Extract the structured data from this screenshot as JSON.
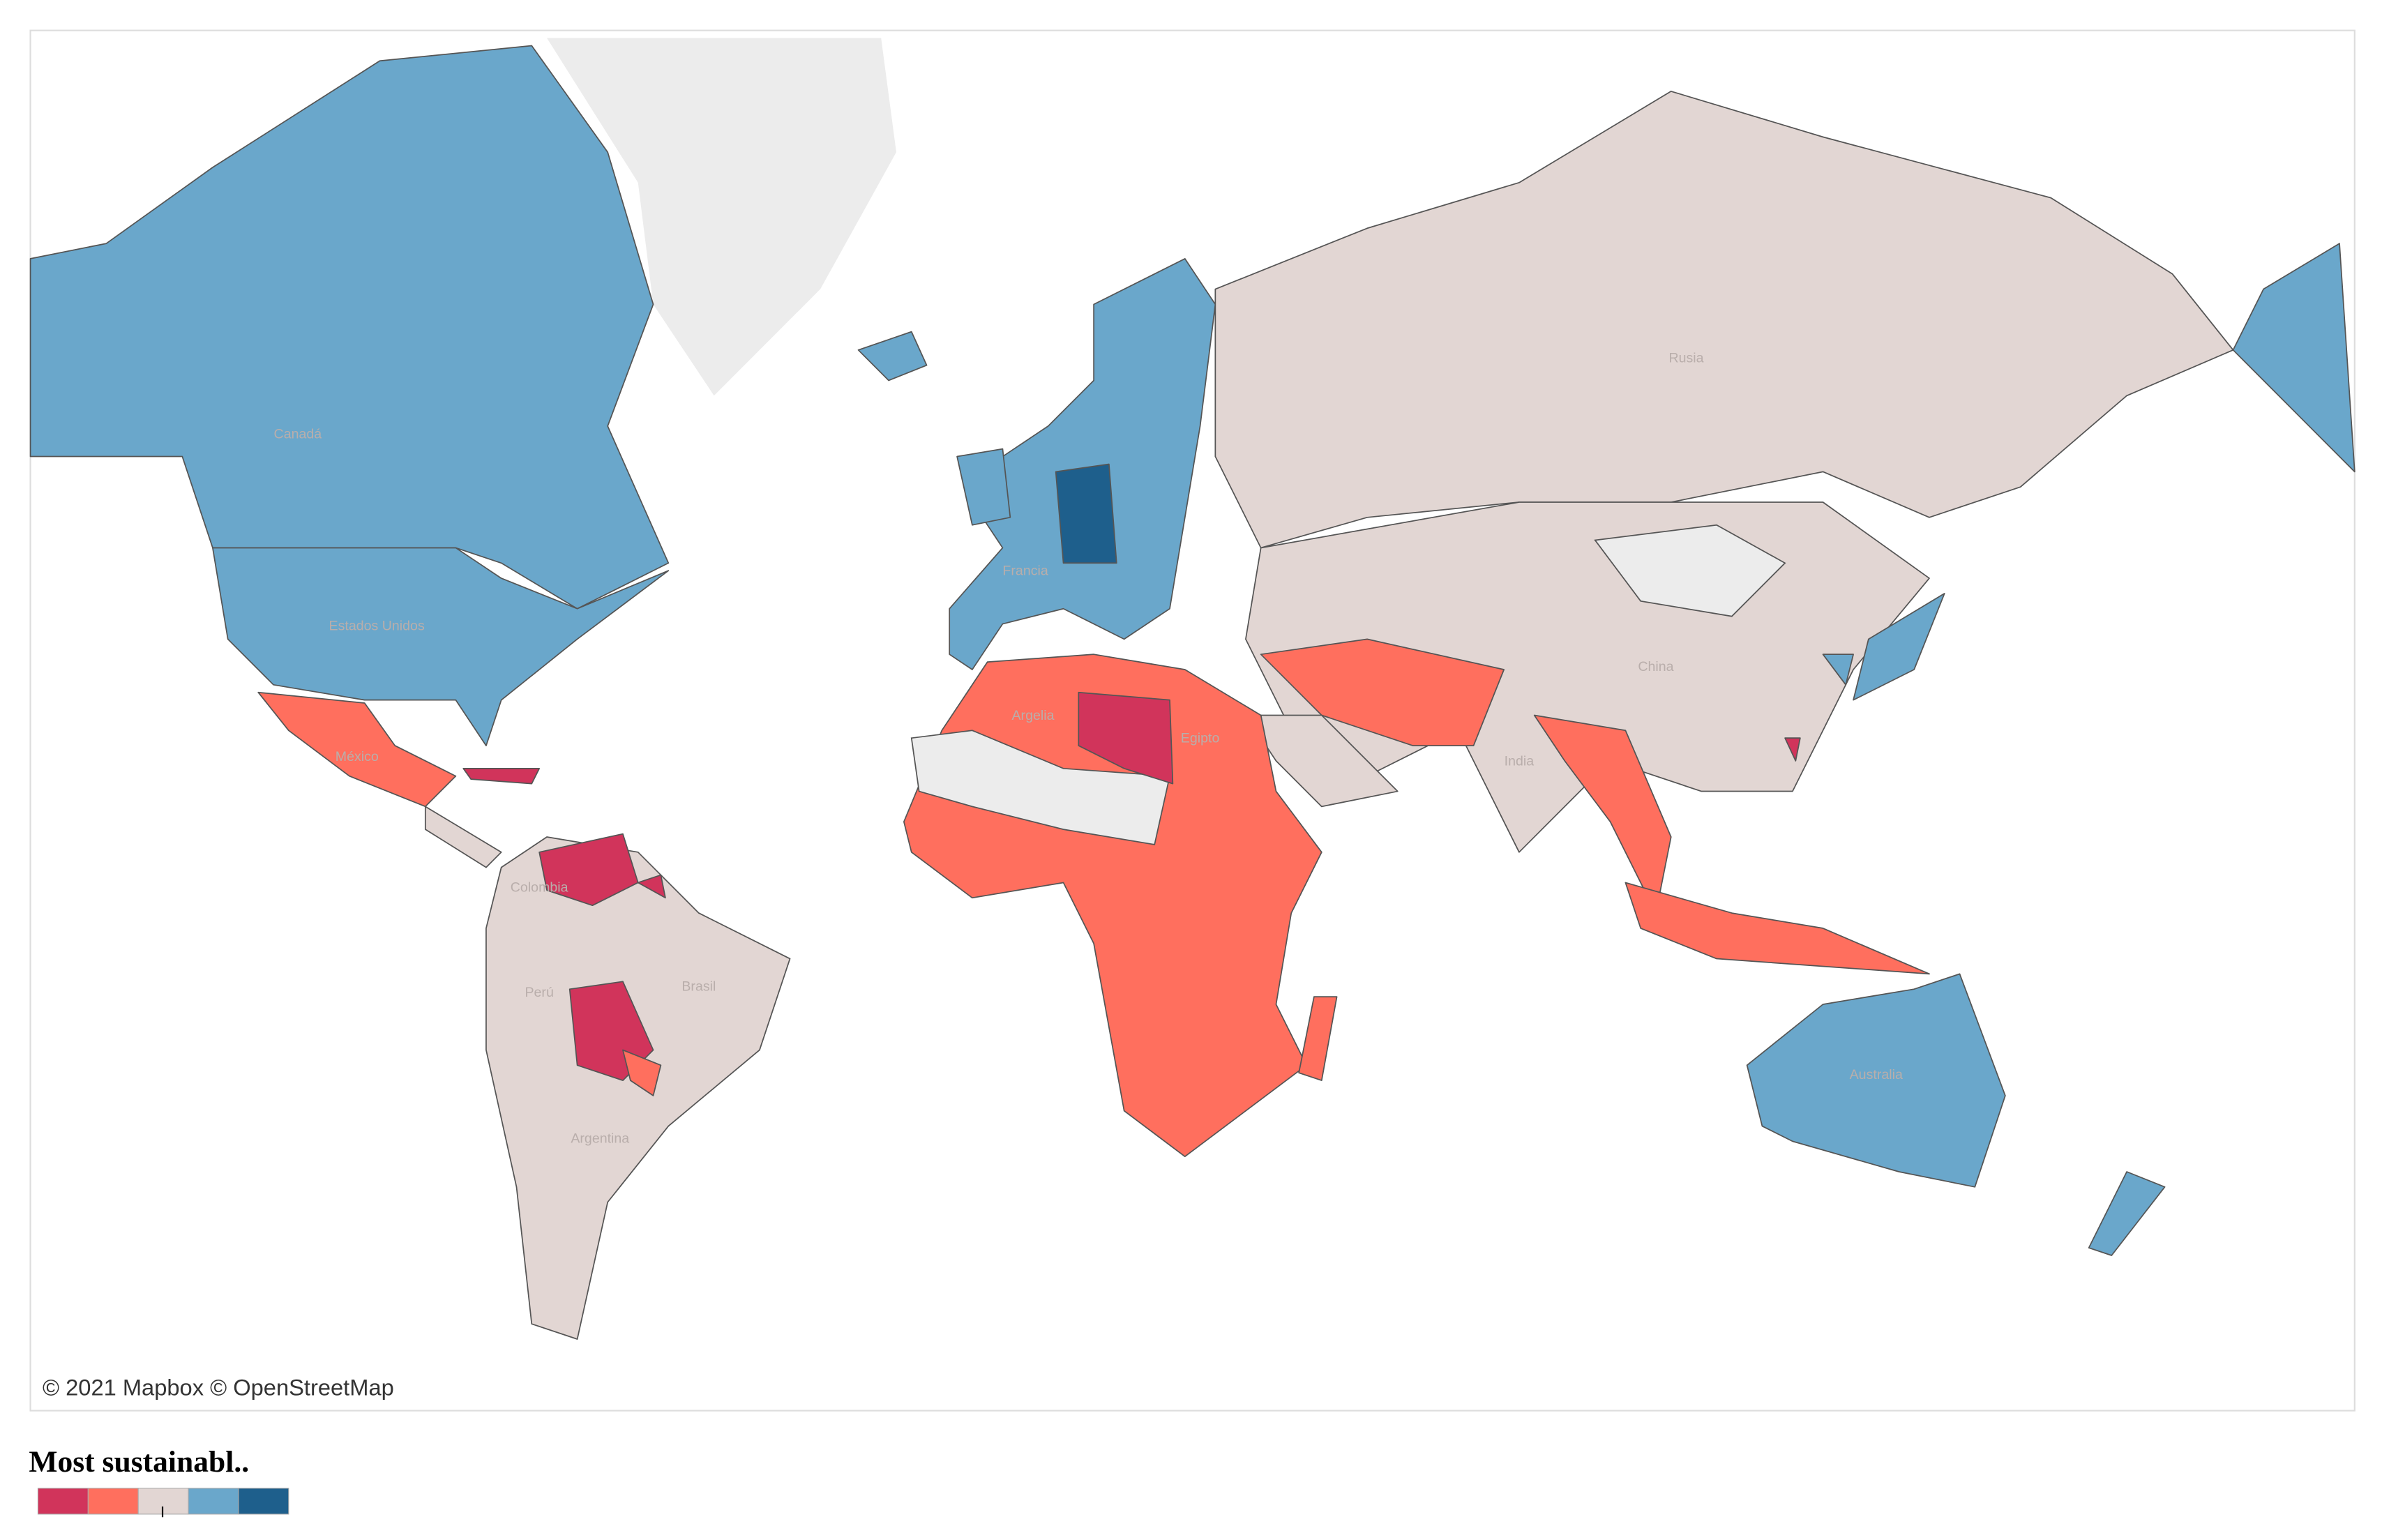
{
  "map": {
    "labels": [
      "Canadá",
      "Estados Unidos",
      "Rusia",
      "China",
      "India",
      "Australia",
      "Brasil",
      "Argentina",
      "Argelia",
      "Egipto",
      "Francia",
      "México",
      "Colombia",
      "Perú"
    ],
    "attribution": "© 2021 Mapbox © OpenStreetMap",
    "legend": {
      "title": "Most sustainabl..",
      "colors": [
        "#d1345b",
        "#ff6f5e",
        "#e2d6d3",
        "#6aa7cb",
        "#1e5f8c"
      ]
    }
  }
}
